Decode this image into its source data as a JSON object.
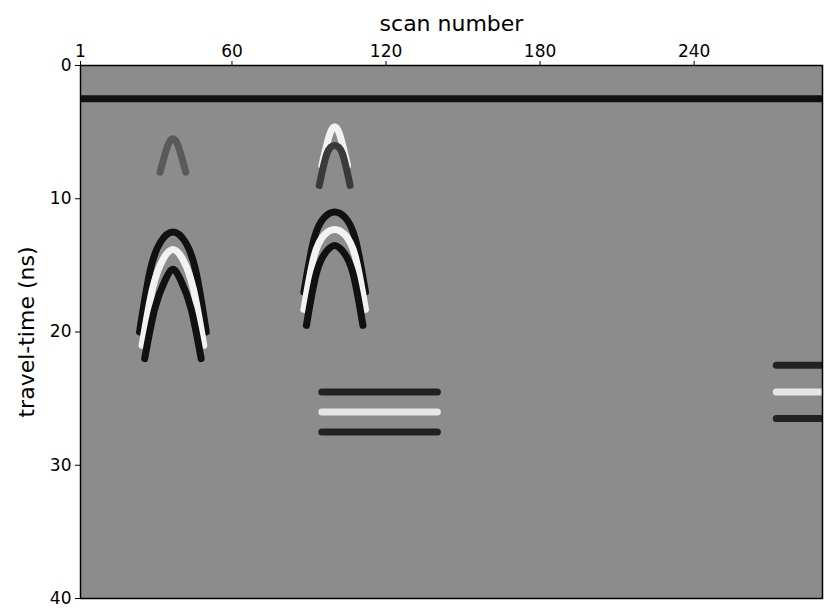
{
  "chart_data": {
    "type": "line",
    "x_label": "scan number",
    "y_label": "travel-time (ns)",
    "xlim": [
      1,
      290
    ],
    "xticks": [
      1,
      60,
      120,
      180,
      240
    ],
    "ylim": [
      0,
      40
    ],
    "yticks": [
      0,
      10,
      20,
      30,
      40
    ],
    "series": [
      {
        "color": "#111111",
        "x": [
          1,
          290
        ],
        "values": [
          2.5,
          2.5
        ]
      },
      {
        "color": "#5a5a5a",
        "x": [
          32,
          35,
          37,
          39,
          42
        ],
        "values": [
          8,
          6,
          5.5,
          6,
          8
        ]
      },
      {
        "color": "#111111",
        "x": [
          24,
          28,
          32,
          37,
          42,
          46,
          50
        ],
        "values": [
          20,
          15.5,
          13.3,
          12.5,
          13.3,
          15.5,
          20
        ]
      },
      {
        "color": "#f2f2f2",
        "x": [
          25,
          29,
          33,
          37,
          41,
          45,
          49
        ],
        "values": [
          21,
          16.8,
          14.6,
          13.8,
          14.6,
          16.8,
          21
        ]
      },
      {
        "color": "#111111",
        "x": [
          26,
          30,
          34,
          37,
          40,
          44,
          48
        ],
        "values": [
          22,
          18.2,
          16.1,
          15.3,
          16.1,
          18.2,
          22
        ]
      },
      {
        "color": "#f2f2f2",
        "x": [
          95,
          98,
          100,
          102,
          105
        ],
        "values": [
          7.5,
          5.2,
          4.6,
          5.2,
          7.5
        ]
      },
      {
        "color": "#3a3a3a",
        "x": [
          94,
          97,
          100,
          103,
          106
        ],
        "values": [
          9,
          6.6,
          6,
          6.6,
          9
        ]
      },
      {
        "color": "#111111",
        "x": [
          88,
          92,
          96,
          100,
          104,
          108,
          112
        ],
        "values": [
          17,
          13,
          11.4,
          11,
          11.4,
          13,
          17
        ]
      },
      {
        "color": "#f2f2f2",
        "x": [
          88,
          92,
          96,
          100,
          104,
          108,
          112
        ],
        "values": [
          18.3,
          14.3,
          12.7,
          12.3,
          12.7,
          14.3,
          18.3
        ]
      },
      {
        "color": "#111111",
        "x": [
          89,
          93,
          97,
          100,
          103,
          107,
          111
        ],
        "values": [
          19.5,
          15.5,
          13.9,
          13.5,
          13.9,
          15.5,
          19.5
        ]
      },
      {
        "color": "#222222",
        "x": [
          95,
          140
        ],
        "values": [
          24.5,
          24.5
        ]
      },
      {
        "color": "#e6e6e6",
        "x": [
          95,
          140
        ],
        "values": [
          26,
          26
        ]
      },
      {
        "color": "#222222",
        "x": [
          95,
          140
        ],
        "values": [
          27.5,
          27.5
        ]
      },
      {
        "color": "#222222",
        "x": [
          272,
          290
        ],
        "values": [
          22.5,
          22.5
        ]
      },
      {
        "color": "#e6e6e6",
        "x": [
          272,
          290
        ],
        "values": [
          24.5,
          24.5
        ]
      },
      {
        "color": "#222222",
        "x": [
          272,
          290
        ],
        "values": [
          26.5,
          26.5
        ]
      }
    ]
  }
}
